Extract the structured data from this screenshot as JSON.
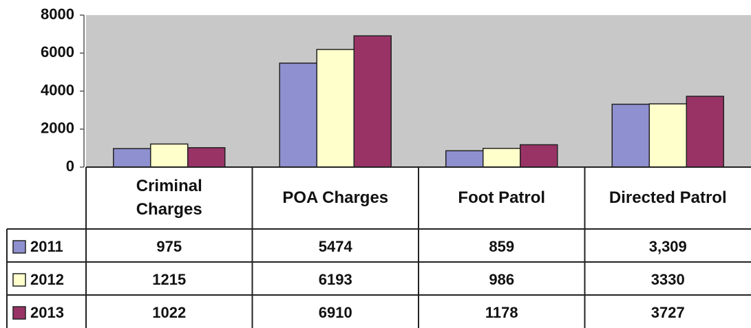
{
  "chart_data": {
    "type": "bar",
    "categories": [
      "Criminal Charges",
      "POA Charges",
      "Foot Patrol",
      "Directed Patrol"
    ],
    "series": [
      {
        "name": "2011",
        "color": "#8f90cf",
        "values": [
          975,
          5474,
          859,
          3309
        ],
        "value_labels": [
          "975",
          "5474",
          "859",
          "3,309"
        ]
      },
      {
        "name": "2012",
        "color": "#ffffcc",
        "values": [
          1215,
          6193,
          986,
          3330
        ]
      },
      {
        "name": "2013",
        "color": "#993366",
        "values": [
          1022,
          6910,
          1178,
          3727
        ]
      }
    ],
    "ylim": [
      0,
      8000
    ],
    "yticks": [
      0,
      2000,
      4000,
      6000,
      8000
    ],
    "data_table": true
  }
}
